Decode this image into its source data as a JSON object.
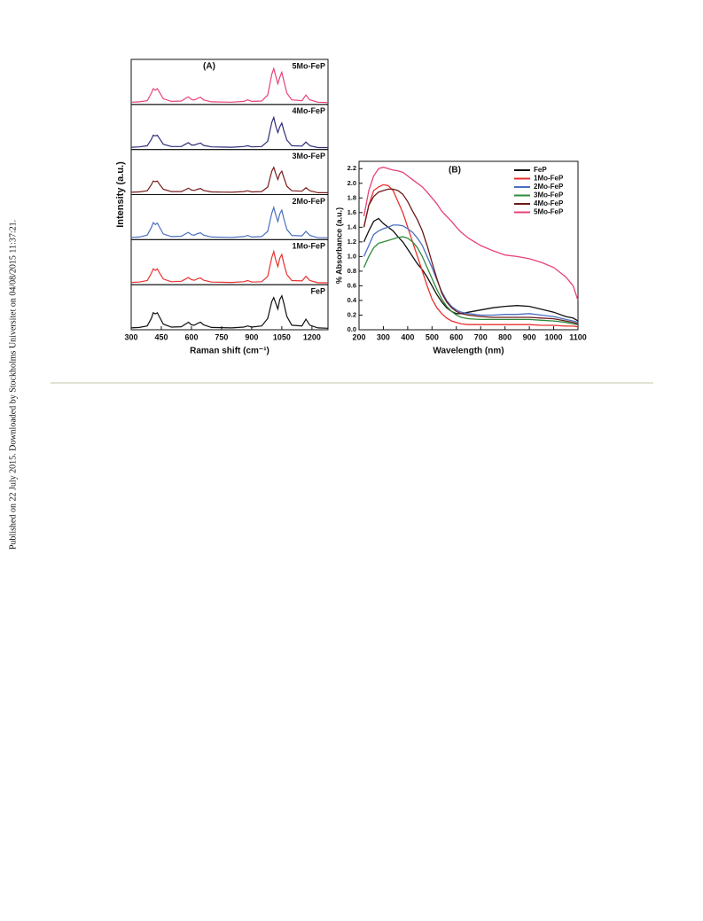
{
  "side_note": "Published on 22 July 2015. Downloaded by Stockholms Universitet on 04/08/2015 11:37:21.",
  "chart_data": [
    {
      "type": "line",
      "panels": true,
      "title": "(A)",
      "x_label": "Raman shift (cm⁻¹)",
      "y_label": "Intensity (a.u.)",
      "x": [
        300,
        340,
        380,
        400,
        410,
        420,
        430,
        440,
        460,
        500,
        550,
        570,
        585,
        600,
        615,
        630,
        645,
        660,
        700,
        800,
        860,
        880,
        900,
        950,
        980,
        1000,
        1010,
        1020,
        1030,
        1040,
        1050,
        1060,
        1075,
        1100,
        1150,
        1170,
        1190,
        1230,
        1280
      ],
      "xlim": [
        300,
        1280
      ],
      "xticks": [
        300,
        450,
        600,
        750,
        900,
        1050,
        1200
      ],
      "ylim": [
        0,
        1.1
      ],
      "series": [
        {
          "name": "5Mo-FeP",
          "color": "#e8407a",
          "values": [
            0.06,
            0.07,
            0.1,
            0.3,
            0.42,
            0.38,
            0.42,
            0.33,
            0.15,
            0.08,
            0.09,
            0.16,
            0.2,
            0.13,
            0.12,
            0.16,
            0.19,
            0.12,
            0.07,
            0.06,
            0.08,
            0.12,
            0.08,
            0.09,
            0.25,
            0.8,
            0.95,
            0.75,
            0.55,
            0.72,
            0.85,
            0.62,
            0.3,
            0.12,
            0.1,
            0.25,
            0.12,
            0.06,
            0.05
          ]
        },
        {
          "name": "4Mo-FeP",
          "color": "#2e2e7a",
          "values": [
            0.06,
            0.07,
            0.1,
            0.27,
            0.38,
            0.36,
            0.38,
            0.3,
            0.14,
            0.08,
            0.08,
            0.14,
            0.18,
            0.12,
            0.12,
            0.15,
            0.17,
            0.11,
            0.07,
            0.06,
            0.08,
            0.1,
            0.07,
            0.08,
            0.22,
            0.72,
            0.85,
            0.62,
            0.45,
            0.6,
            0.7,
            0.5,
            0.25,
            0.1,
            0.09,
            0.2,
            0.1,
            0.05,
            0.05
          ]
        },
        {
          "name": "3Mo-FeP",
          "color": "#7a1c1c",
          "values": [
            0.06,
            0.07,
            0.1,
            0.26,
            0.36,
            0.34,
            0.36,
            0.28,
            0.14,
            0.08,
            0.08,
            0.13,
            0.17,
            0.12,
            0.11,
            0.14,
            0.16,
            0.11,
            0.07,
            0.06,
            0.08,
            0.1,
            0.07,
            0.08,
            0.2,
            0.62,
            0.72,
            0.55,
            0.4,
            0.55,
            0.62,
            0.45,
            0.22,
            0.1,
            0.09,
            0.18,
            0.1,
            0.05,
            0.05
          ]
        },
        {
          "name": "2Mo-FeP",
          "color": "#4a6fc0",
          "values": [
            0.06,
            0.07,
            0.12,
            0.32,
            0.45,
            0.4,
            0.44,
            0.34,
            0.15,
            0.08,
            0.09,
            0.15,
            0.19,
            0.13,
            0.12,
            0.16,
            0.18,
            0.12,
            0.07,
            0.06,
            0.08,
            0.11,
            0.07,
            0.08,
            0.22,
            0.7,
            0.85,
            0.65,
            0.48,
            0.68,
            0.78,
            0.55,
            0.27,
            0.11,
            0.1,
            0.22,
            0.11,
            0.05,
            0.05
          ]
        },
        {
          "name": "1Mo-FeP",
          "color": "#e8312f",
          "values": [
            0.06,
            0.07,
            0.11,
            0.3,
            0.42,
            0.38,
            0.42,
            0.32,
            0.15,
            0.08,
            0.09,
            0.15,
            0.19,
            0.13,
            0.12,
            0.16,
            0.18,
            0.12,
            0.07,
            0.06,
            0.08,
            0.11,
            0.07,
            0.08,
            0.22,
            0.72,
            0.88,
            0.65,
            0.48,
            0.7,
            0.8,
            0.56,
            0.27,
            0.11,
            0.1,
            0.22,
            0.11,
            0.05,
            0.05
          ]
        },
        {
          "name": "FeP",
          "color": "#111111",
          "values": [
            0.05,
            0.06,
            0.1,
            0.3,
            0.45,
            0.42,
            0.45,
            0.35,
            0.15,
            0.07,
            0.08,
            0.15,
            0.2,
            0.13,
            0.12,
            0.17,
            0.2,
            0.13,
            0.06,
            0.05,
            0.07,
            0.1,
            0.07,
            0.1,
            0.3,
            0.75,
            0.85,
            0.7,
            0.55,
            0.8,
            0.9,
            0.7,
            0.35,
            0.12,
            0.1,
            0.28,
            0.12,
            0.05,
            0.04
          ]
        }
      ]
    },
    {
      "type": "line",
      "title": "(B)",
      "x_label": "Wavelength (nm)",
      "y_label": "% Absorbance (a.u.)",
      "x": [
        220,
        240,
        260,
        280,
        300,
        320,
        340,
        360,
        380,
        400,
        420,
        440,
        460,
        480,
        500,
        520,
        540,
        560,
        580,
        600,
        620,
        650,
        700,
        750,
        800,
        850,
        900,
        950,
        1000,
        1050,
        1080,
        1100
      ],
      "xlim": [
        200,
        1100
      ],
      "xticks": [
        200,
        300,
        400,
        500,
        600,
        700,
        800,
        900,
        1000,
        1100
      ],
      "ylim": [
        0,
        2.3
      ],
      "yticks": [
        {
          "value": 0,
          "label": "0.0"
        },
        0.2,
        0.4,
        0.6,
        0.8,
        {
          "value": 1,
          "label": "1.0"
        },
        1.2,
        1.4,
        1.6,
        1.8,
        {
          "value": 2,
          "label": "2.0"
        },
        2.2
      ],
      "legend": "top-right",
      "series": [
        {
          "name": "FeP",
          "color": "#111111",
          "values": [
            1.2,
            1.35,
            1.48,
            1.52,
            1.45,
            1.4,
            1.35,
            1.27,
            1.2,
            1.1,
            1.0,
            0.9,
            0.82,
            0.72,
            0.6,
            0.48,
            0.38,
            0.3,
            0.25,
            0.22,
            0.22,
            0.24,
            0.27,
            0.3,
            0.32,
            0.33,
            0.32,
            0.28,
            0.24,
            0.18,
            0.16,
            0.12
          ]
        },
        {
          "name": "1Mo-FeP",
          "color": "#e8312f",
          "values": [
            1.4,
            1.7,
            1.9,
            1.95,
            1.98,
            1.97,
            1.9,
            1.75,
            1.6,
            1.4,
            1.2,
            1.0,
            0.8,
            0.6,
            0.42,
            0.3,
            0.22,
            0.16,
            0.12,
            0.1,
            0.08,
            0.07,
            0.07,
            0.07,
            0.07,
            0.07,
            0.07,
            0.06,
            0.06,
            0.05,
            0.05,
            0.04
          ]
        },
        {
          "name": "2Mo-FeP",
          "color": "#4a6fc0",
          "values": [
            1.0,
            1.15,
            1.3,
            1.35,
            1.38,
            1.4,
            1.43,
            1.43,
            1.42,
            1.38,
            1.33,
            1.25,
            1.15,
            1.0,
            0.85,
            0.68,
            0.52,
            0.4,
            0.32,
            0.27,
            0.24,
            0.22,
            0.2,
            0.2,
            0.21,
            0.21,
            0.22,
            0.2,
            0.18,
            0.14,
            0.12,
            0.1
          ]
        },
        {
          "name": "3Mo-FeP",
          "color": "#2e8b3a",
          "values": [
            0.85,
            1.0,
            1.12,
            1.18,
            1.2,
            1.22,
            1.24,
            1.26,
            1.27,
            1.25,
            1.2,
            1.12,
            1.0,
            0.85,
            0.7,
            0.55,
            0.42,
            0.32,
            0.25,
            0.2,
            0.17,
            0.15,
            0.14,
            0.14,
            0.14,
            0.14,
            0.14,
            0.13,
            0.12,
            0.1,
            0.08,
            0.07
          ]
        },
        {
          "name": "4Mo-FeP",
          "color": "#6b1a1a",
          "values": [
            1.4,
            1.7,
            1.82,
            1.88,
            1.9,
            1.92,
            1.92,
            1.9,
            1.85,
            1.75,
            1.62,
            1.5,
            1.35,
            1.15,
            0.92,
            0.7,
            0.5,
            0.38,
            0.3,
            0.25,
            0.22,
            0.2,
            0.18,
            0.17,
            0.17,
            0.17,
            0.17,
            0.16,
            0.15,
            0.12,
            0.1,
            0.08
          ]
        },
        {
          "name": "5Mo-FeP",
          "color": "#e8407a",
          "values": [
            1.55,
            1.9,
            2.1,
            2.2,
            2.22,
            2.2,
            2.18,
            2.17,
            2.15,
            2.1,
            2.05,
            2.0,
            1.95,
            1.88,
            1.8,
            1.72,
            1.62,
            1.55,
            1.48,
            1.4,
            1.33,
            1.25,
            1.15,
            1.08,
            1.02,
            1.0,
            0.97,
            0.92,
            0.85,
            0.72,
            0.6,
            0.4
          ]
        }
      ]
    }
  ]
}
